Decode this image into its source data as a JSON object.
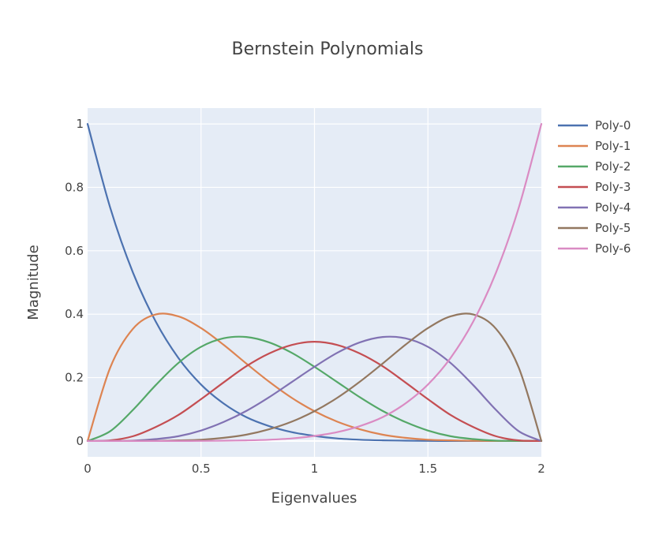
{
  "chart_data": {
    "type": "line",
    "title": "Bernstein Polynomials",
    "xlabel": "Eigenvalues",
    "ylabel": "Magnitude",
    "xlim": [
      0,
      2
    ],
    "ylim": [
      -0.05,
      1.05
    ],
    "x_ticks": [
      0,
      0.5,
      1,
      1.5,
      2
    ],
    "x_tick_labels": [
      "0",
      "0.5",
      "1",
      "1.5",
      "2"
    ],
    "y_ticks": [
      0,
      0.2,
      0.4,
      0.6,
      0.8,
      1
    ],
    "y_tick_labels": [
      "0",
      "0.2",
      "0.4",
      "0.6",
      "0.8",
      "1"
    ],
    "grid": true,
    "legend_position": "top-right",
    "plot_background": "#e5ecf6",
    "x": [
      0,
      0.1,
      0.2,
      0.3,
      0.4,
      0.5,
      0.6,
      0.7,
      0.8,
      0.9,
      1.0,
      1.1,
      1.2,
      1.3,
      1.4,
      1.5,
      1.6,
      1.7,
      1.8,
      1.9,
      2.0
    ],
    "series": [
      {
        "name": "Poly-0",
        "color": "#4c72b0",
        "values": [
          1,
          0.735,
          0.531,
          0.377,
          0.262,
          0.178,
          0.118,
          0.075,
          0.047,
          0.028,
          0.016,
          0.008,
          0.004,
          0.002,
          0.001,
          0.0002,
          0.0001,
          0,
          0,
          0,
          0
        ]
      },
      {
        "name": "Poly-1",
        "color": "#dd8452",
        "values": [
          0,
          0.232,
          0.354,
          0.399,
          0.393,
          0.356,
          0.303,
          0.244,
          0.187,
          0.136,
          0.094,
          0.061,
          0.037,
          0.02,
          0.01,
          0.004,
          0.002,
          0.0005,
          0.0001,
          0,
          0
        ]
      },
      {
        "name": "Poly-2",
        "color": "#55a868",
        "values": [
          0,
          0.031,
          0.098,
          0.176,
          0.246,
          0.297,
          0.324,
          0.328,
          0.311,
          0.278,
          0.234,
          0.186,
          0.138,
          0.095,
          0.06,
          0.033,
          0.015,
          0.006,
          0.001,
          0.0002,
          0
        ]
      },
      {
        "name": "Poly-3",
        "color": "#c44e52",
        "values": [
          0,
          0.002,
          0.015,
          0.044,
          0.082,
          0.132,
          0.185,
          0.236,
          0.276,
          0.303,
          0.313,
          0.303,
          0.276,
          0.236,
          0.185,
          0.132,
          0.082,
          0.044,
          0.015,
          0.002,
          0
        ]
      },
      {
        "name": "Poly-4",
        "color": "#8172b3",
        "values": [
          0,
          0.0002,
          0.001,
          0.006,
          0.015,
          0.033,
          0.06,
          0.095,
          0.138,
          0.186,
          0.234,
          0.278,
          0.311,
          0.328,
          0.324,
          0.297,
          0.246,
          0.176,
          0.098,
          0.031,
          0
        ]
      },
      {
        "name": "Poly-5",
        "color": "#937860",
        "values": [
          0,
          0,
          0.0001,
          0.0005,
          0.002,
          0.004,
          0.01,
          0.02,
          0.037,
          0.061,
          0.094,
          0.136,
          0.187,
          0.244,
          0.303,
          0.356,
          0.393,
          0.399,
          0.354,
          0.232,
          0
        ]
      },
      {
        "name": "Poly-6",
        "color": "#da8bc3",
        "values": [
          0,
          0,
          0,
          0,
          0.0001,
          0.0002,
          0.001,
          0.002,
          0.004,
          0.008,
          0.016,
          0.028,
          0.047,
          0.075,
          0.118,
          0.178,
          0.262,
          0.377,
          0.531,
          0.735,
          1
        ]
      }
    ]
  }
}
